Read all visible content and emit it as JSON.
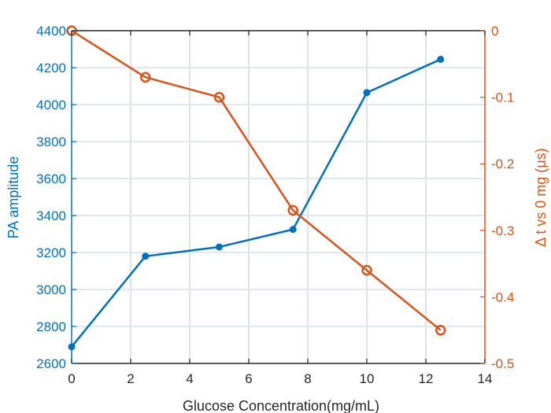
{
  "chart_data": {
    "type": "line",
    "title": "",
    "xlabel": "Glucose Concentration(mg/mL)",
    "ylabel_left": "PA amplitude",
    "ylabel_right": "Δ t vs 0 mg (μs)",
    "xlim": [
      0,
      14
    ],
    "ylim_left": [
      2600,
      4400
    ],
    "ylim_right": [
      -0.5,
      0
    ],
    "xticks": [
      "0",
      "2",
      "4",
      "6",
      "8",
      "10",
      "12",
      "14"
    ],
    "yticks_left": [
      "2600",
      "2800",
      "3000",
      "3200",
      "3400",
      "3600",
      "3800",
      "4000",
      "4200",
      "4400"
    ],
    "yticks_right": [
      "-0.5",
      "-0.4",
      "-0.3",
      "-0.2",
      "-0.1",
      "0"
    ],
    "grid": true,
    "series": [
      {
        "name": "PA amplitude",
        "axis": "left",
        "marker": "dot",
        "color": "#0072BD",
        "x": [
          0,
          2.5,
          5,
          7.5,
          10,
          12.5
        ],
        "y": [
          2690,
          3180,
          3230,
          3325,
          4065,
          4245
        ]
      },
      {
        "name": "Δ t vs 0 mg",
        "axis": "right",
        "marker": "circle",
        "color": "#D95319",
        "x": [
          0,
          2.5,
          5,
          7.5,
          10,
          12.5
        ],
        "y": [
          0,
          -0.07,
          -0.1,
          -0.27,
          -0.36,
          -0.45
        ]
      }
    ]
  }
}
